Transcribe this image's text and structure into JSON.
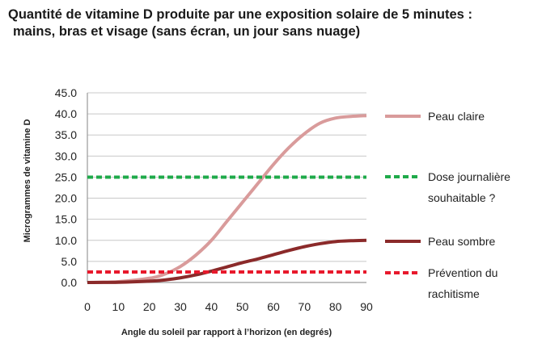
{
  "chart_data": {
    "type": "line",
    "title": [
      "Quantité de vitamine D produite par une exposition solaire de 5 minutes :",
      "mains, bras et visage (sans écran, un jour sans nuage)"
    ],
    "xlabel": "Angle du soleil par rapport à l’horizon (en degrés)",
    "ylabel": "Microgrammes de vitamine D",
    "xlim": [
      0,
      90
    ],
    "ylim": [
      0,
      45
    ],
    "xticks": [
      "0",
      "10",
      "20",
      "30",
      "40",
      "50",
      "60",
      "70",
      "80",
      "90"
    ],
    "yticks": [
      "0.0",
      "5.0",
      "10.0",
      "15.0",
      "20.0",
      "25.0",
      "30.0",
      "35.0",
      "40.0",
      "45.0"
    ],
    "grid": "horizontal",
    "legend_position": "right",
    "series": [
      {
        "name": "Peau claire",
        "color": "#d99b9b",
        "style": "solid",
        "x": [
          0,
          10,
          20,
          25,
          30,
          35,
          40,
          45,
          50,
          55,
          60,
          65,
          70,
          75,
          80,
          85,
          90
        ],
        "y": [
          0.0,
          0.2,
          1.0,
          2.0,
          3.8,
          6.5,
          10.0,
          14.5,
          19.0,
          23.5,
          28.0,
          32.0,
          35.3,
          37.8,
          39.0,
          39.4,
          39.6
        ]
      },
      {
        "name": "Dose journalière souhaitable ?",
        "legend_lines": [
          "Dose journalière",
          "souhaitable ?"
        ],
        "color": "#1faa4a",
        "style": "dashed",
        "x": [
          0,
          90
        ],
        "y": [
          25.0,
          25.0
        ]
      },
      {
        "name": "Peau sombre",
        "color": "#8b2a2a",
        "style": "solid",
        "x": [
          0,
          10,
          20,
          25,
          30,
          35,
          40,
          45,
          50,
          55,
          60,
          65,
          70,
          75,
          80,
          85,
          90
        ],
        "y": [
          0.0,
          0.05,
          0.3,
          0.6,
          1.1,
          1.8,
          2.7,
          3.7,
          4.7,
          5.6,
          6.6,
          7.6,
          8.5,
          9.2,
          9.7,
          9.9,
          10.0
        ]
      },
      {
        "name": "Prévention du rachitisme",
        "legend_lines": [
          "Prévention du",
          "rachitisme"
        ],
        "color": "#e8192c",
        "style": "dashed",
        "x": [
          0,
          90
        ],
        "y": [
          2.5,
          2.5
        ]
      }
    ]
  }
}
